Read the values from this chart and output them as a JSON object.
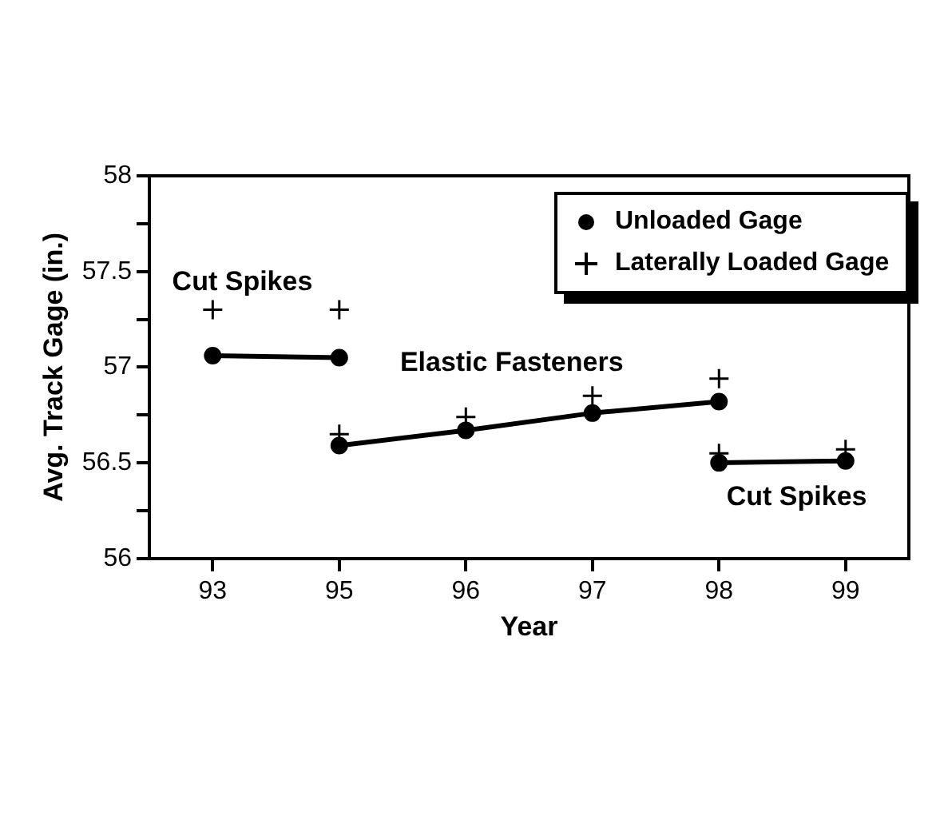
{
  "chart_data": {
    "type": "line",
    "xlabel": "Year",
    "ylabel": "Avg. Track Gage (in.)",
    "categories": [
      "93",
      "95",
      "96",
      "97",
      "98",
      "99"
    ],
    "ylim": [
      56.0,
      58.0
    ],
    "yticks": [
      56.0,
      {
        "value": 56.25,
        "label": null
      },
      56.5,
      {
        "value": 56.75,
        "label": null
      },
      57.0,
      {
        "value": 57.25,
        "label": null
      },
      57.5,
      {
        "value": 57.75,
        "label": null
      },
      58.0
    ],
    "grid": false,
    "legend": "top right",
    "series": [
      {
        "name": "Unloaded Gage",
        "color": "#000000",
        "marker": "circle",
        "line_style": "solid",
        "values": [
          57.06,
          57.05,
          null,
          null,
          null,
          null
        ]
      },
      {
        "color": "#000000",
        "marker": "circle",
        "line_style": "solid",
        "values": [
          null,
          56.59,
          56.67,
          56.76,
          56.82,
          null
        ]
      },
      {
        "color": "#000000",
        "marker": "circle",
        "line_style": "solid",
        "values": [
          null,
          null,
          null,
          null,
          56.5,
          56.51
        ]
      },
      {
        "name": "Laterally Loaded Gage",
        "type": "scatter",
        "color": "#000000",
        "marker": "cross",
        "x": [
          "93",
          "95",
          "95",
          "96",
          "97",
          "98",
          "98",
          "99"
        ],
        "values": [
          57.3,
          57.3,
          56.65,
          56.74,
          56.85,
          56.94,
          56.55,
          56.57
        ]
      }
    ],
    "annotations": [
      "Cut Spikes",
      "Elastic Fasteners",
      "Cut Spikes"
    ]
  }
}
